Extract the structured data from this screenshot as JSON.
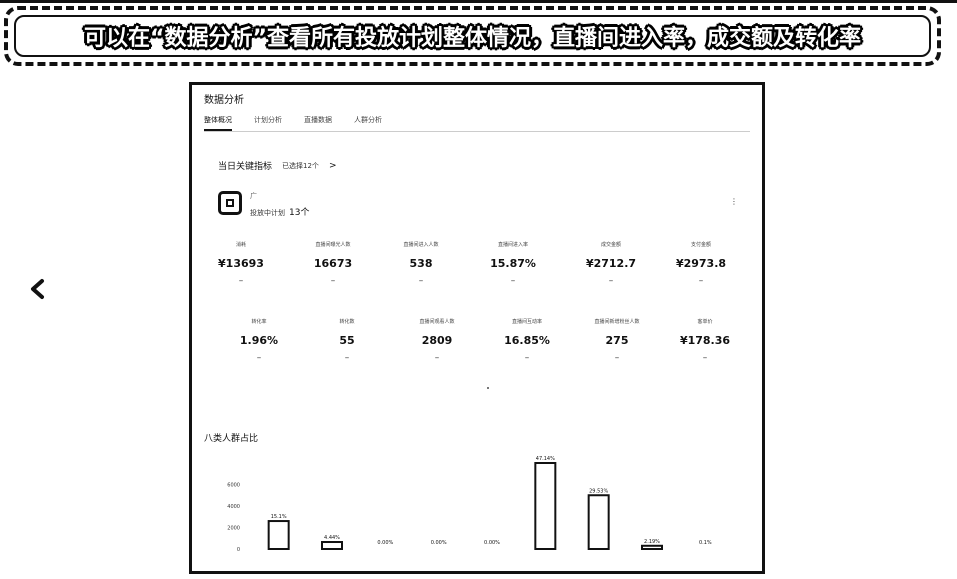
{
  "banner": {
    "text": "可以在“数据分析”查看所有投放计划整体情况，直播间进入率，成交额及转化率"
  },
  "icons": {
    "back": "chevron-left-icon",
    "account": "account-logo-icon",
    "more": "more-dots-icon"
  },
  "panel": {
    "title": "数据分析",
    "tabs": [
      {
        "label": "整体概况",
        "active": true
      },
      {
        "label": "计划分析",
        "active": false
      },
      {
        "label": "直播数据",
        "active": false
      },
      {
        "label": "人群分析",
        "active": false
      }
    ],
    "kpi_header": {
      "title": "当日关键指标",
      "sub": "已选择12个",
      "chevron": ">"
    },
    "account": {
      "name": "广",
      "meta": "投放中计划",
      "count": "13个",
      "more": "⋮"
    },
    "metrics_row1": [
      {
        "label": "消耗",
        "value": "¥13693",
        "dash": "–"
      },
      {
        "label": "直播间曝光人数",
        "value": "16673",
        "dash": "–"
      },
      {
        "label": "直播间进入人数",
        "value": "538",
        "dash": "–"
      },
      {
        "label": "直播间进入率",
        "value": "15.87%",
        "dash": "–"
      },
      {
        "label": "成交金额",
        "value": "¥2712.7",
        "dash": "–"
      },
      {
        "label": "支付金额",
        "value": "¥2973.8",
        "dash": "–"
      }
    ],
    "metrics_row2": [
      {
        "label": "转化率",
        "value": "1.96%",
        "dash": "–"
      },
      {
        "label": "转化数",
        "value": "55",
        "dash": "–"
      },
      {
        "label": "直播间观看人数",
        "value": "2809",
        "dash": "–"
      },
      {
        "label": "直播间互动率",
        "value": "16.85%",
        "dash": "–"
      },
      {
        "label": "直播间新增粉丝人数",
        "value": "275",
        "dash": "–"
      },
      {
        "label": "客单价",
        "value": "¥178.36",
        "dash": "–"
      }
    ],
    "chart_section_title": "八类人群占比"
  },
  "chart_data": {
    "type": "bar",
    "yticks": [
      "6000",
      "4000",
      "",
      "2000",
      "0"
    ],
    "ylim": [
      0,
      8000
    ],
    "categories": [
      "",
      "",
      "",
      "",
      "",
      "",
      "",
      "",
      ""
    ],
    "values": [
      2600,
      650,
      0,
      0,
      0,
      8000,
      5000,
      300,
      0
    ],
    "data_labels": [
      "15.1%",
      "4.44%",
      "0.00%",
      "0.00%",
      "0.00%",
      "47.14%",
      "29.53%",
      "2.19%",
      "0.1%"
    ],
    "colors": {
      "bar_fill": "#ffffff",
      "bar_stroke": "#111111"
    }
  }
}
